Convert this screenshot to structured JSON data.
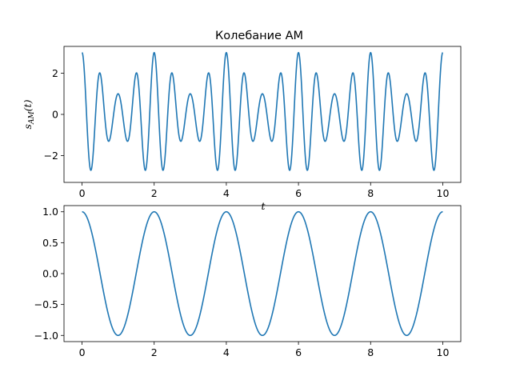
{
  "chart_data": [
    {
      "type": "line",
      "title": "Колебание AM",
      "ylabel": "s_AM(t)",
      "xlabel": "t",
      "xlim": [
        -0.5,
        10.5
      ],
      "ylim": [
        -3.3,
        3.3
      ],
      "xticks": [
        0,
        2,
        4,
        6,
        8,
        10
      ],
      "yticks": [
        -2,
        0,
        2
      ],
      "xtick_labels": [
        "0",
        "2",
        "4",
        "6",
        "8",
        "10"
      ],
      "ytick_labels": [
        "−2",
        "0",
        "2"
      ],
      "grid": false,
      "series": [
        {
          "formula": "(2 + cos(pi*t)) * cos(4*pi*t)",
          "t_start": 0,
          "t_end": 10,
          "color": "#1f77b4"
        }
      ]
    },
    {
      "type": "line",
      "title": "",
      "xlabel": "",
      "ylabel": "",
      "xlim": [
        -0.5,
        10.5
      ],
      "ylim": [
        -1.1,
        1.1
      ],
      "xticks": [
        0,
        2,
        4,
        6,
        8,
        10
      ],
      "yticks": [
        -1.0,
        -0.5,
        0.0,
        0.5,
        1.0
      ],
      "xtick_labels": [
        "0",
        "2",
        "4",
        "6",
        "8",
        "10"
      ],
      "ytick_labels": [
        "−1.0",
        "−0.5",
        "0.0",
        "0.5",
        "1.0"
      ],
      "grid": false,
      "series": [
        {
          "formula": "cos(pi*t)",
          "t_start": 0,
          "t_end": 10,
          "color": "#1f77b4"
        }
      ]
    }
  ]
}
